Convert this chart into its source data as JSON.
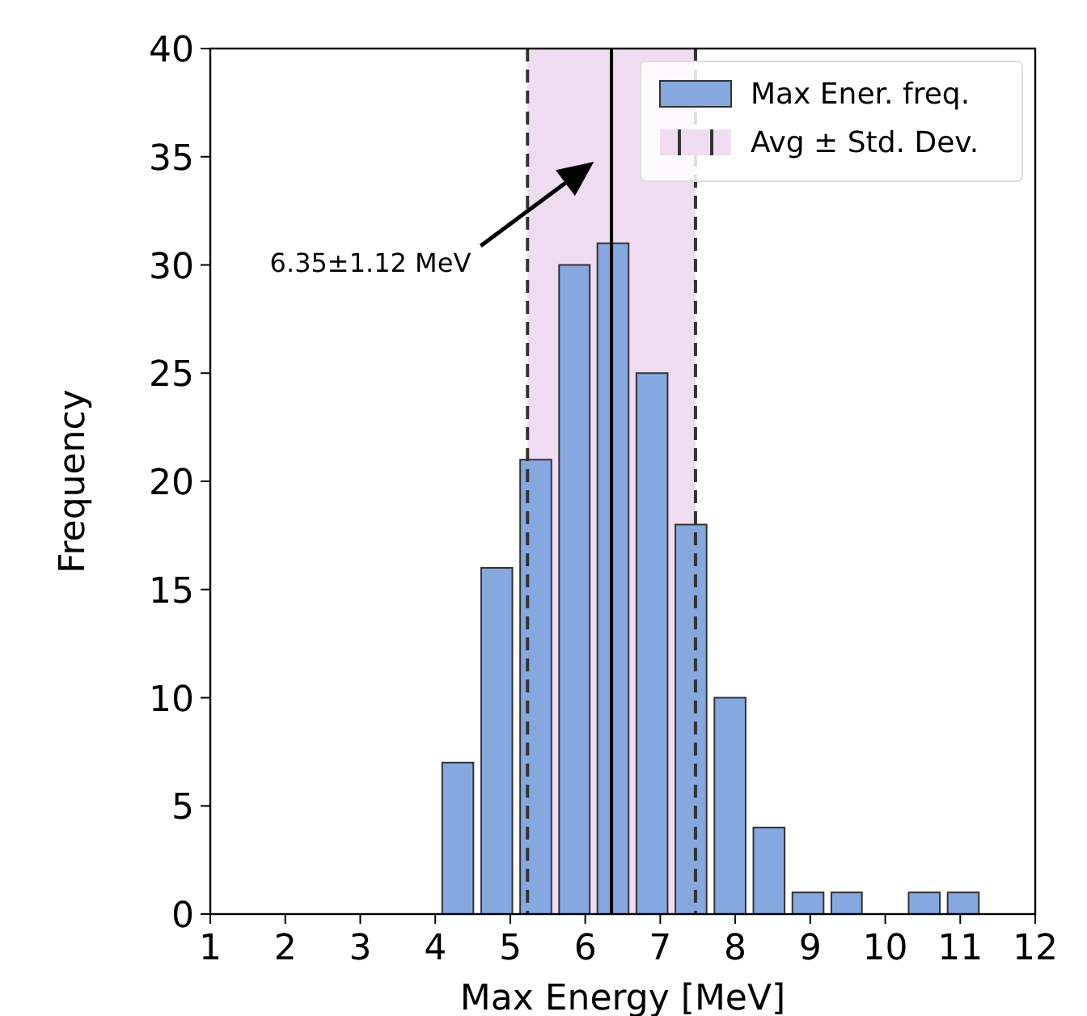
{
  "chart_data": {
    "type": "histogram",
    "xlabel": "Max Energy [MeV]",
    "ylabel": "Frequency",
    "bins": [
      4.04,
      4.56,
      5.08,
      5.6,
      6.11,
      6.63,
      7.15,
      7.67,
      8.19,
      8.71,
      9.23,
      9.74,
      10.26,
      10.78,
      11.3
    ],
    "series": [
      {
        "name": "Max Ener. freq.",
        "color": "#86a8e0",
        "values": [
          7,
          16,
          21,
          30,
          31,
          25,
          18,
          10,
          4,
          1,
          1,
          0,
          1,
          1
        ]
      }
    ],
    "ref_lines": [
      {
        "axis": "x",
        "value": 6.35,
        "color": "#000000",
        "line_style": "solid"
      },
      {
        "axis": "x",
        "value": 5.23,
        "color": "#333333",
        "line_style": "dashed"
      },
      {
        "axis": "x",
        "value": 7.47,
        "color": "#333333",
        "line_style": "dashed"
      }
    ],
    "bands": [
      {
        "axis": "x",
        "from": 5.23,
        "to": 7.47,
        "label": "Avg ± Std. Dev.",
        "color": "#f0dcf0"
      }
    ],
    "annotations": [
      "6.35±1.12 MeV"
    ],
    "xlim": [
      1,
      12
    ],
    "ylim": [
      0,
      40
    ],
    "xticks": [
      1,
      2,
      3,
      4,
      5,
      6,
      7,
      8,
      9,
      10,
      11,
      12
    ],
    "yticks": [
      0,
      5,
      10,
      15,
      20,
      25,
      30,
      35,
      40
    ],
    "grid": false,
    "legend": "top right"
  }
}
